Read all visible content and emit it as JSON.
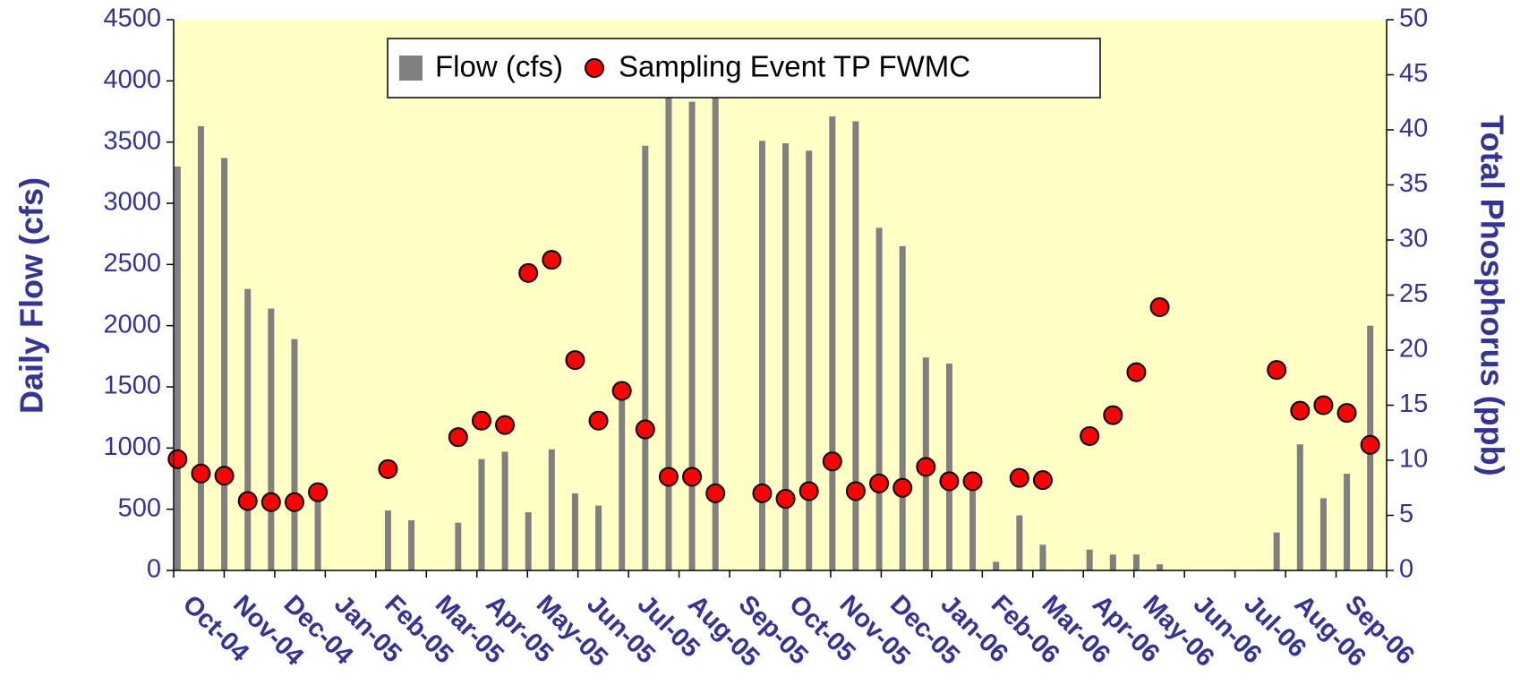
{
  "chart_data": {
    "type": "bar",
    "y_label": "Daily Flow (cfs)",
    "y2_label": "Total Phosphorus (ppb)",
    "categories": [
      null,
      null,
      null,
      null,
      null,
      null,
      null,
      null,
      null,
      null,
      null,
      null,
      null,
      null,
      null,
      null,
      null,
      null,
      null,
      null,
      null,
      null,
      null,
      null,
      null,
      null,
      null,
      null,
      null,
      null,
      null,
      null,
      null,
      null,
      null,
      null,
      null,
      null,
      null,
      null,
      null,
      null,
      null,
      null,
      null,
      null,
      null,
      null,
      null,
      null,
      null,
      null
    ],
    "month_labels": [
      "Oct-04",
      "Nov-04",
      "Dec-04",
      "Jan-05",
      "Feb-05",
      "Mar-05",
      "Apr-05",
      "May-05",
      "Jun-05",
      "Jul-05",
      "Aug-05",
      "Sep-05",
      "Oct-05",
      "Nov-05",
      "Dec-05",
      "Jan-06",
      "Feb-06",
      "Mar-06",
      "Apr-06",
      "May-06",
      "Jun-06",
      "Jul-06",
      "Aug-06",
      "Sep-06"
    ],
    "series": [
      {
        "name": "Flow (cfs)",
        "type": "bar",
        "color": "#808080",
        "values": [
          3300,
          3630,
          3370,
          2300,
          2140,
          1890,
          650,
          null,
          null,
          490,
          410,
          null,
          390,
          910,
          970,
          475,
          990,
          630,
          530,
          1450,
          3470,
          4000,
          3830,
          4100,
          null,
          3510,
          3490,
          3430,
          3710,
          3670,
          2800,
          2650,
          1740,
          1690,
          700,
          70,
          450,
          210,
          null,
          170,
          130,
          130,
          50,
          null,
          null,
          null,
          null,
          310,
          1030,
          590,
          790,
          2000
        ]
      },
      {
        "name": "Sampling Event TP FWMC",
        "type": "scatter",
        "axis": "y2",
        "color": "#ff0000",
        "values": [
          10.1,
          8.8,
          8.6,
          6.3,
          6.2,
          6.2,
          7.1,
          null,
          null,
          9.2,
          null,
          null,
          12.1,
          13.6,
          13.2,
          27.0,
          28.2,
          19.1,
          13.6,
          16.3,
          12.8,
          8.5,
          8.5,
          7.0,
          null,
          7.0,
          6.5,
          7.2,
          9.9,
          7.2,
          7.9,
          7.5,
          9.4,
          8.1,
          8.1,
          null,
          8.4,
          8.2,
          null,
          12.2,
          14.1,
          18.0,
          23.9,
          null,
          null,
          null,
          null,
          18.2,
          14.5,
          15.0,
          14.3,
          11.4
        ]
      }
    ],
    "ylim": [
      0,
      4500
    ],
    "yticks": [
      0,
      500,
      1000,
      1500,
      2000,
      2500,
      3000,
      3500,
      4000,
      4500
    ],
    "y2lim": [
      0,
      50
    ],
    "y2ticks": [
      0,
      5,
      10,
      15,
      20,
      25,
      30,
      35,
      40,
      45,
      50
    ],
    "background": "#ffffc6"
  }
}
